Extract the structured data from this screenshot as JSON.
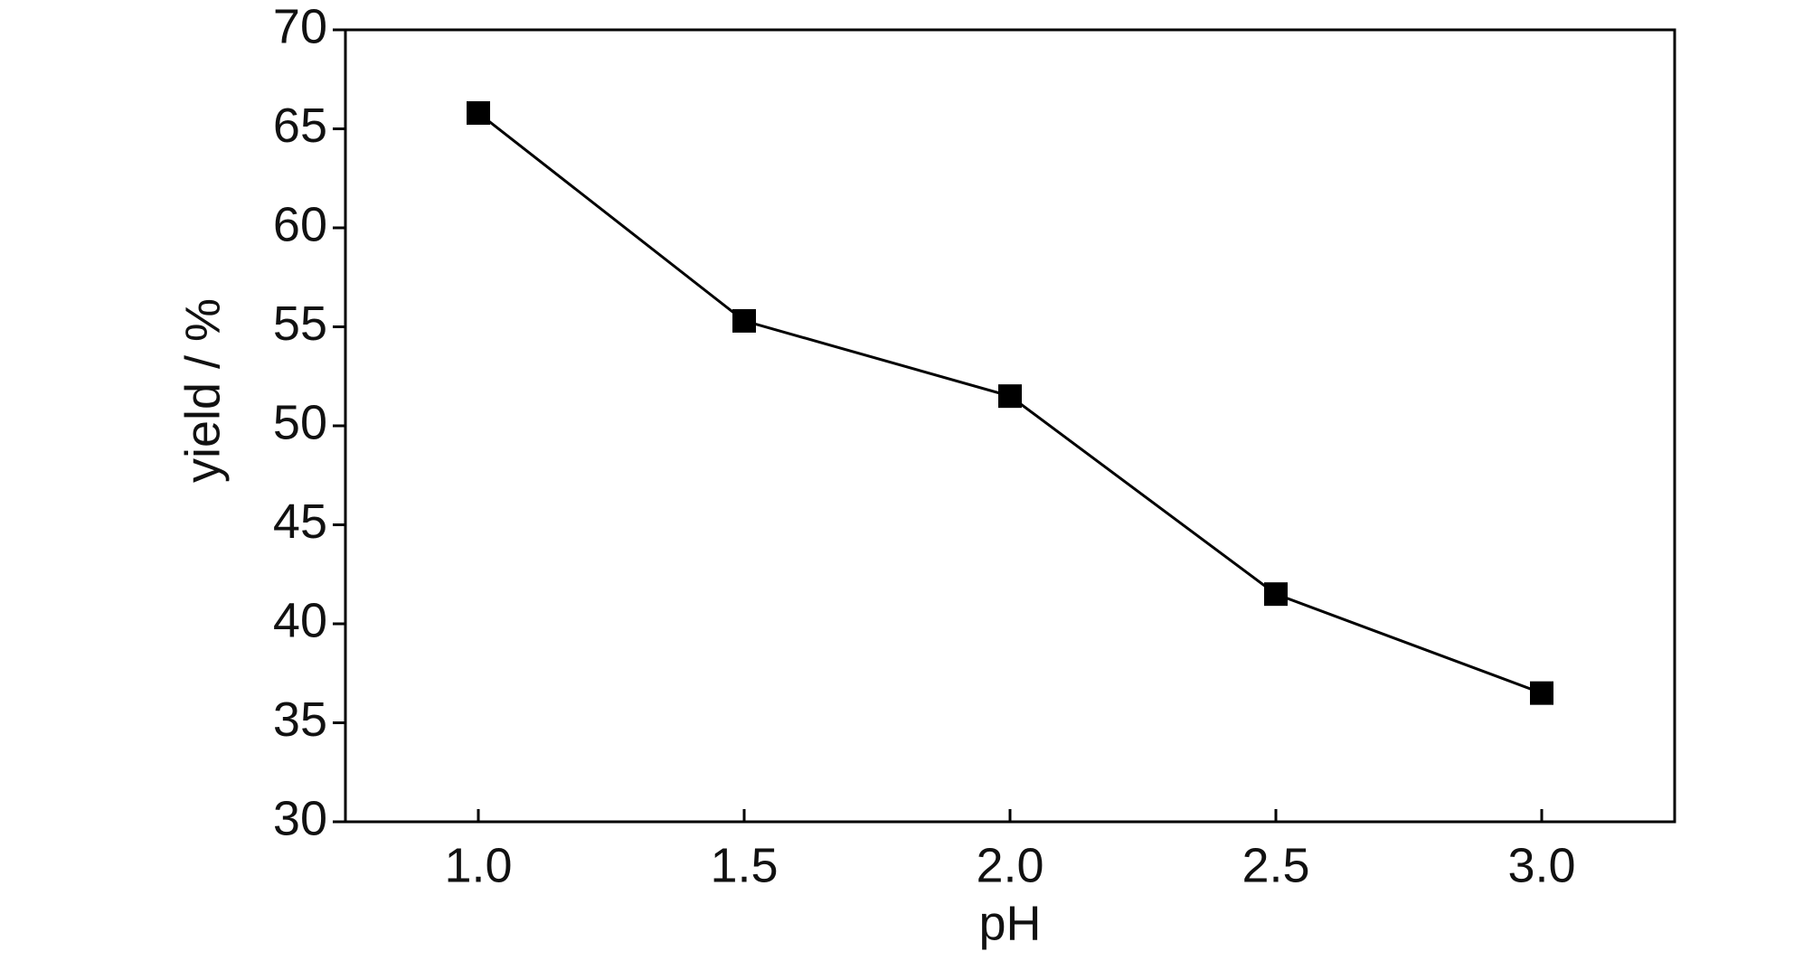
{
  "chart_data": {
    "type": "line",
    "x_label": "pH",
    "y_label": "yield / %",
    "x": [
      1.0,
      1.5,
      2.0,
      2.5,
      3.0
    ],
    "series": [
      {
        "color": "#000000",
        "values": [
          65.8,
          55.3,
          51.5,
          41.5,
          36.5
        ]
      }
    ],
    "xlim": [
      0.75,
      3.25
    ],
    "xticks": [
      {
        "value": 1.0,
        "label": "1.0"
      },
      1.5,
      {
        "value": 2.0,
        "label": "2.0"
      },
      2.5,
      {
        "value": 3.0,
        "label": "3.0"
      }
    ],
    "ylim": [
      30,
      70
    ],
    "yticks": [
      30,
      35,
      40,
      45,
      50,
      55,
      60,
      65,
      70
    ],
    "grid": false
  }
}
